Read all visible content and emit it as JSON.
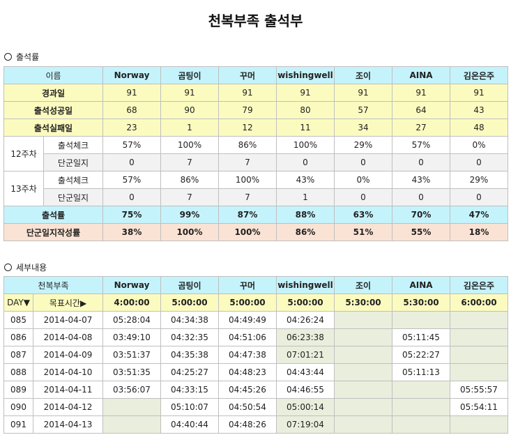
{
  "title": "천복부족 출석부",
  "section1": "출석률",
  "section2": "세부내용",
  "members": [
    "Norway",
    "곰팅이",
    "꾸머",
    "wishingwell",
    "조이",
    "AINA",
    "김온은주"
  ],
  "summary": {
    "name_header": "이름",
    "elapsed": {
      "label": "경과일",
      "values": [
        "91",
        "91",
        "91",
        "91",
        "91",
        "91",
        "91"
      ]
    },
    "success": {
      "label": "출석성공일",
      "values": [
        "68",
        "90",
        "79",
        "80",
        "57",
        "64",
        "43"
      ]
    },
    "fail": {
      "label": "출석실패일",
      "values": [
        "23",
        "1",
        "12",
        "11",
        "34",
        "27",
        "48"
      ]
    },
    "week12": {
      "label": "12주차",
      "check": {
        "label": "출석체크",
        "values": [
          "57%",
          "100%",
          "86%",
          "100%",
          "29%",
          "57%",
          "0%"
        ]
      },
      "diary": {
        "label": "단군일지",
        "values": [
          "0",
          "7",
          "7",
          "0",
          "0",
          "0",
          "0"
        ]
      }
    },
    "week13": {
      "label": "13주차",
      "check": {
        "label": "출석체크",
        "values": [
          "57%",
          "86%",
          "100%",
          "43%",
          "0%",
          "43%",
          "29%"
        ]
      },
      "diary": {
        "label": "단군일지",
        "values": [
          "0",
          "7",
          "7",
          "1",
          "0",
          "0",
          "0"
        ]
      }
    },
    "rate": {
      "label": "출석률",
      "values": [
        "75%",
        "99%",
        "87%",
        "88%",
        "63%",
        "70%",
        "47%"
      ]
    },
    "diary_rate": {
      "label": "단군일지작성률",
      "values": [
        "38%",
        "100%",
        "100%",
        "86%",
        "51%",
        "55%",
        "18%"
      ]
    }
  },
  "detail": {
    "group": "천복부족",
    "day_label": "DAY▼",
    "target_label": "목표시간▶",
    "targets": [
      "4:00:00",
      "5:00:00",
      "5:00:00",
      "5:00:00",
      "5:30:00",
      "5:30:00",
      "6:00:00"
    ],
    "rows": [
      {
        "day": "085",
        "date": "2014-04-07",
        "times": [
          "05:28:04",
          "04:34:38",
          "04:49:49",
          "04:26:24",
          "",
          "",
          ""
        ]
      },
      {
        "day": "086",
        "date": "2014-04-08",
        "times": [
          "03:49:10",
          "04:32:35",
          "04:51:06",
          "06:23:38",
          "",
          "05:11:45",
          ""
        ]
      },
      {
        "day": "087",
        "date": "2014-04-09",
        "times": [
          "03:51:37",
          "04:35:38",
          "04:47:38",
          "07:01:21",
          "",
          "05:22:27",
          ""
        ]
      },
      {
        "day": "088",
        "date": "2014-04-10",
        "times": [
          "03:51:35",
          "04:25:27",
          "04:48:23",
          "04:43:44",
          "",
          "05:11:13",
          ""
        ]
      },
      {
        "day": "089",
        "date": "2014-04-11",
        "times": [
          "03:56:07",
          "04:33:15",
          "04:45:26",
          "04:46:55",
          "",
          "",
          "05:55:57"
        ]
      },
      {
        "day": "090",
        "date": "2014-04-12",
        "times": [
          "",
          "05:10:07",
          "04:50:54",
          "05:00:14",
          "",
          "",
          "05:54:11"
        ]
      },
      {
        "day": "091",
        "date": "2014-04-13",
        "times": [
          "",
          "04:40:44",
          "04:48:26",
          "07:19:04",
          "",
          "",
          ""
        ]
      }
    ]
  }
}
